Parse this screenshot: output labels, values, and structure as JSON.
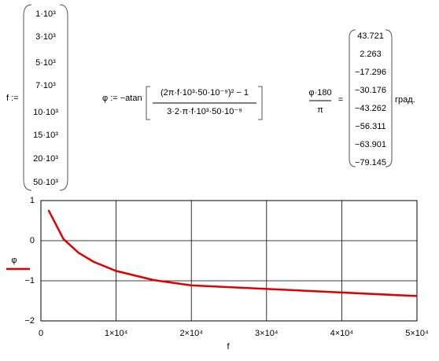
{
  "definition_f": {
    "label": "f :=",
    "entries": [
      "1·10³",
      "3·10³",
      "5·10³",
      "7·10³",
      "10·10³",
      "15·10³",
      "20·10³",
      "50·10³"
    ]
  },
  "definition_phi": {
    "label": "φ := −atan",
    "numerator": "(2π·f·10³·50·10⁻⁹)² − 1",
    "denominator": "3·2·π·f·10³·50·10⁻⁹"
  },
  "result": {
    "numerator": "φ·180",
    "denominator": "π",
    "equals": "=",
    "values": [
      "43.721",
      "2.263",
      "−17.296",
      "−30.176",
      "−43.262",
      "−56.311",
      "−63.901",
      "−79.145"
    ],
    "unit": "град."
  },
  "chart_data": {
    "type": "line",
    "xlabel": "f",
    "x": [
      1000,
      3000,
      5000,
      7000,
      10000,
      15000,
      20000,
      50000
    ],
    "series": [
      {
        "name": "φ",
        "color": "#e00000",
        "values": [
          0.763,
          0.0395,
          -0.302,
          -0.527,
          -0.755,
          -0.983,
          -1.115,
          -1.381
        ]
      }
    ],
    "xlim": [
      0,
      50000
    ],
    "ylim": [
      -2,
      1
    ],
    "xticks": [
      0,
      {
        "value": 10000,
        "label": "1×10⁴"
      },
      {
        "value": 20000,
        "label": "2×10⁴"
      },
      {
        "value": 30000,
        "label": "3×10⁴"
      },
      {
        "value": 40000,
        "label": "4×10⁴"
      },
      {
        "value": 50000,
        "label": "5×10⁴"
      }
    ],
    "yticks": [
      1,
      0,
      {
        "value": -1,
        "label": "−1"
      },
      {
        "value": -2,
        "label": "−2"
      }
    ],
    "grid": true
  }
}
